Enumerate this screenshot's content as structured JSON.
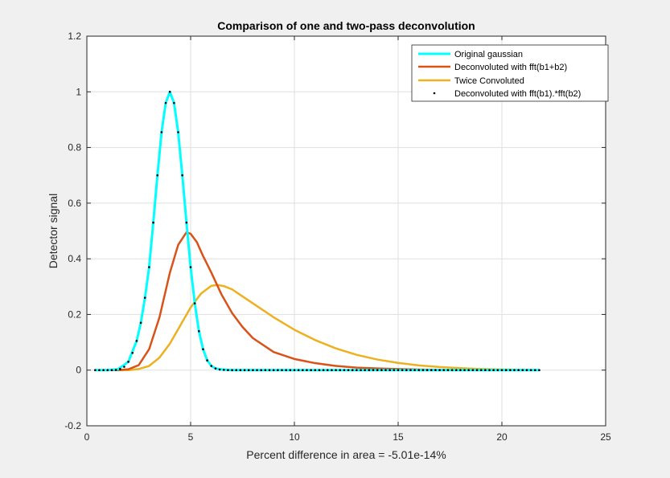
{
  "chart_data": {
    "type": "line",
    "title": "Comparison of one and two-pass deconvolution",
    "xlabel": "Percent difference in area = -5.01e-14%",
    "ylabel": "Detector signal",
    "xlim": [
      0,
      25
    ],
    "ylim": [
      -0.2,
      1.2
    ],
    "xticks": [
      0,
      5,
      10,
      15,
      20,
      25
    ],
    "xtick_labels": [
      "0",
      "5",
      "10",
      "15",
      "20",
      "25"
    ],
    "yticks": [
      -0.2,
      0,
      0.2,
      0.4,
      0.6,
      0.8,
      1,
      1.2
    ],
    "ytick_labels": [
      "-0.2",
      "0",
      "0.2",
      "0.4",
      "0.6",
      "0.8",
      "1",
      "1.2"
    ],
    "grid": true,
    "legend_position": "top-right",
    "colors": {
      "figure_bg": "#f0f0f0",
      "axes_bg": "#ffffff",
      "grid": "#dfdfdf",
      "axis": "#262626"
    },
    "series": [
      {
        "name": "Original gaussian",
        "style": "line",
        "color": "#00ffff",
        "x": [
          0.4,
          1.0,
          1.5,
          2.0,
          2.4,
          2.6,
          2.8,
          3.0,
          3.2,
          3.4,
          3.6,
          3.8,
          4.0,
          4.2,
          4.4,
          4.6,
          4.8,
          5.0,
          5.2,
          5.4,
          5.6,
          5.8,
          6.0,
          6.2,
          6.5,
          7.0,
          8.0,
          10.0,
          14.0,
          18.0,
          21.8
        ],
        "y": [
          0.0,
          0.0,
          0.003,
          0.03,
          0.105,
          0.17,
          0.26,
          0.37,
          0.53,
          0.7,
          0.855,
          0.96,
          1.0,
          0.96,
          0.855,
          0.7,
          0.53,
          0.37,
          0.24,
          0.14,
          0.075,
          0.035,
          0.015,
          0.006,
          0.002,
          0.0,
          0.0,
          0.0,
          0.0,
          0.0,
          0.0
        ]
      },
      {
        "name": "Deconvoluted with fft(b1+b2)",
        "style": "line",
        "color": "#d95319",
        "x": [
          0.4,
          1.5,
          2.0,
          2.5,
          3.0,
          3.5,
          4.0,
          4.4,
          4.8,
          5.0,
          5.3,
          5.6,
          6.0,
          6.5,
          7.0,
          7.5,
          8.0,
          9.0,
          10.0,
          11.0,
          12.0,
          13.0,
          14.0,
          15.0,
          16.0,
          17.0,
          18.0,
          20.0,
          21.8
        ],
        "y": [
          0.0,
          0.0,
          0.003,
          0.018,
          0.075,
          0.19,
          0.35,
          0.45,
          0.495,
          0.49,
          0.46,
          0.41,
          0.35,
          0.27,
          0.205,
          0.155,
          0.115,
          0.065,
          0.04,
          0.025,
          0.015,
          0.009,
          0.006,
          0.004,
          0.002,
          0.001,
          0.0,
          0.0,
          0.0
        ]
      },
      {
        "name": "Twice Convoluted",
        "style": "line",
        "color": "#edb120",
        "x": [
          0.4,
          2.0,
          2.5,
          3.0,
          3.5,
          4.0,
          4.5,
          5.0,
          5.5,
          6.0,
          6.3,
          6.6,
          7.0,
          7.5,
          8.0,
          9.0,
          10.0,
          11.0,
          12.0,
          13.0,
          14.0,
          15.0,
          16.0,
          17.0,
          18.0,
          19.0,
          20.0,
          21.0,
          21.8
        ],
        "y": [
          0.0,
          0.0,
          0.004,
          0.015,
          0.045,
          0.095,
          0.16,
          0.225,
          0.275,
          0.303,
          0.306,
          0.302,
          0.29,
          0.265,
          0.24,
          0.19,
          0.145,
          0.108,
          0.078,
          0.055,
          0.038,
          0.026,
          0.017,
          0.011,
          0.007,
          0.004,
          0.002,
          0.001,
          0.0
        ]
      },
      {
        "name": "Deconvoluted with fft(b1).*fft(b2)",
        "style": "markers",
        "color": "#000000",
        "x": [
          0.4,
          0.6,
          0.8,
          1.0,
          1.2,
          1.4,
          1.6,
          1.8,
          2.0,
          2.2,
          2.4,
          2.6,
          2.8,
          3.0,
          3.2,
          3.4,
          3.6,
          3.8,
          4.0,
          4.2,
          4.4,
          4.6,
          4.8,
          5.0,
          5.2,
          5.4,
          5.6,
          5.8,
          6.0,
          6.2,
          6.4,
          6.6,
          6.8,
          7.0,
          7.2,
          7.4,
          7.6,
          7.8,
          8.0,
          8.2,
          8.4,
          8.6,
          8.8,
          9.0,
          9.2,
          9.4,
          9.6,
          9.8,
          10.0,
          10.2,
          10.4,
          10.6,
          10.8,
          11.0,
          11.2,
          11.4,
          11.6,
          11.8,
          12.0,
          12.2,
          12.4,
          12.6,
          12.8,
          13.0,
          13.2,
          13.4,
          13.6,
          13.8,
          14.0,
          14.2,
          14.4,
          14.6,
          14.8,
          15.0,
          15.2,
          15.4,
          15.6,
          15.8,
          16.0,
          16.2,
          16.4,
          16.6,
          16.8,
          17.0,
          17.2,
          17.4,
          17.6,
          17.8,
          18.0,
          18.2,
          18.4,
          18.6,
          18.8,
          19.0,
          19.2,
          19.4,
          19.6,
          19.8,
          20.0,
          20.2,
          20.4,
          20.6,
          20.8,
          21.0,
          21.2,
          21.4,
          21.6,
          21.8
        ],
        "y": [
          0.0,
          0.0,
          0.0,
          0.0,
          0.0,
          0.001,
          0.004,
          0.012,
          0.03,
          0.062,
          0.105,
          0.17,
          0.26,
          0.37,
          0.53,
          0.7,
          0.855,
          0.96,
          1.0,
          0.96,
          0.855,
          0.7,
          0.53,
          0.37,
          0.24,
          0.14,
          0.075,
          0.035,
          0.015,
          0.006,
          0.002,
          0.001,
          0.0,
          0.0,
          0.0,
          0.0,
          0.0,
          0.0,
          0.0,
          0.0,
          0.0,
          0.0,
          0.0,
          0.0,
          0.0,
          0.0,
          0.0,
          0.0,
          0.0,
          0.0,
          0.0,
          0.0,
          0.0,
          0.0,
          0.0,
          0.0,
          0.0,
          0.0,
          0.0,
          0.0,
          0.0,
          0.0,
          0.0,
          0.0,
          0.0,
          0.0,
          0.0,
          0.0,
          0.0,
          0.0,
          0.0,
          0.0,
          0.0,
          0.0,
          0.0,
          0.0,
          0.0,
          0.0,
          0.0,
          0.0,
          0.0,
          0.0,
          0.0,
          0.0,
          0.0,
          0.0,
          0.0,
          0.0,
          0.0,
          0.0,
          0.0,
          0.0,
          0.0,
          0.0,
          0.0,
          0.0,
          0.0,
          0.0,
          0.0,
          0.0,
          0.0,
          0.0,
          0.0,
          0.0,
          0.0,
          0.0,
          0.0,
          0.0
        ]
      }
    ]
  }
}
